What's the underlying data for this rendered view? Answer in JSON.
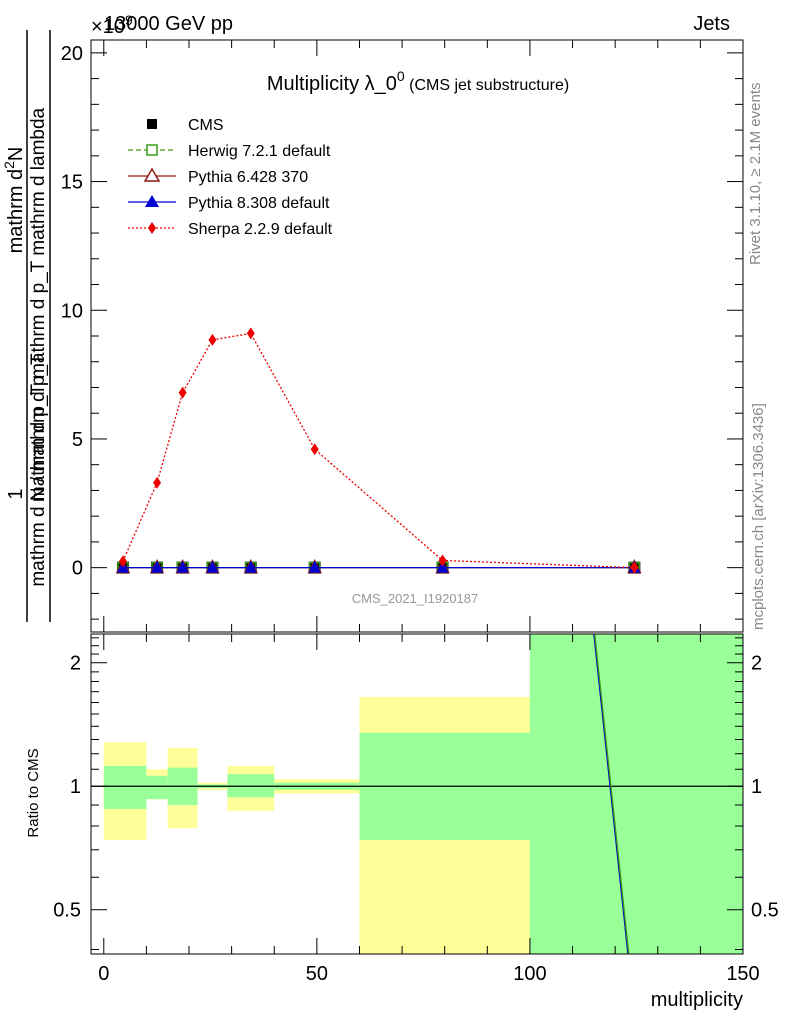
{
  "header": {
    "left": "13000 GeV pp",
    "right": "Jets"
  },
  "side_labels": {
    "rivet": "Rivet 3.1.10, ≥ 2.1M events",
    "mcplots": "mcplots.cern.ch [arXiv:1306.3436]"
  },
  "watermark": "CMS_2021_I1920187",
  "chart_data": [
    {
      "type": "line",
      "title": "Multiplicity λ_0^0",
      "title_main": "Multiplicity λ_0",
      "title_sup": "0",
      "subtitle": "(CMS jet substructure)",
      "ylabel_numerator": "mathrm d²N",
      "ylabel_numerator_text": "mathrm d",
      "ylabel_numerator_sup": "2",
      "ylabel_numerator_end": "N",
      "ylabel_fraction_one": "1",
      "ylabel_denominator_upper": "mathrm d p_T mathrm d p_T mathrm d lambda",
      "ylabel_denominator_lower": "mathrm d N / mathrm d p_T",
      "yexponent": "×10^9",
      "yexponent_base": "×10",
      "yexponent_power": "9",
      "ylim": [
        -2.5,
        20.5
      ],
      "xlim": [
        -3,
        150
      ],
      "yticks": [
        0,
        5,
        10,
        15,
        20
      ],
      "ytick_labels": [
        "0",
        "5",
        "10",
        "15",
        "20"
      ],
      "legend_position": "top-left",
      "x": [
        4.5,
        12.5,
        18.5,
        25.5,
        34.5,
        49.5,
        79.5,
        124.5
      ],
      "series": [
        {
          "name": "CMS",
          "color": "#000000",
          "marker": "square",
          "values": [
            0,
            0,
            0,
            0,
            0,
            0,
            0,
            0
          ]
        },
        {
          "name": "Herwig 7.2.1 default",
          "color": "#3a9a10",
          "marker": "open-square",
          "dash": "dashed",
          "values": [
            0,
            0,
            0,
            0,
            0,
            0,
            0,
            0
          ]
        },
        {
          "name": "Pythia 6.428 370",
          "color": "#8b1a1a",
          "marker": "open-triangle",
          "values": [
            0,
            0,
            0,
            0,
            0,
            0,
            0,
            0
          ]
        },
        {
          "name": "Pythia 8.308 default",
          "color": "#0000d0",
          "marker": "triangle",
          "values": [
            0,
            0,
            0,
            0,
            0,
            0,
            0,
            0
          ]
        },
        {
          "name": "Sherpa 2.2.9 default",
          "color": "#ee0000",
          "marker": "diamond",
          "dash": "dotted",
          "values": [
            0.25,
            3.3,
            6.8,
            8.85,
            9.1,
            4.6,
            0.28,
            0
          ]
        }
      ]
    },
    {
      "type": "area",
      "ylabel": "Ratio to CMS",
      "xlabel": "multiplicity",
      "xlim": [
        -3,
        150
      ],
      "ylim": [
        0.39,
        2.35
      ],
      "ylog": true,
      "xticks": [
        0,
        50,
        100,
        150
      ],
      "xtick_labels": [
        "0",
        "50",
        "100",
        "150"
      ],
      "yticks": [
        0.5,
        1,
        2
      ],
      "ytick_labels": [
        "0.5",
        "1",
        "2"
      ],
      "reference_line": 1,
      "bins": [
        {
          "x0": 0,
          "x1": 10,
          "stat": [
            0.88,
            1.12
          ],
          "total": [
            0.74,
            1.28
          ]
        },
        {
          "x0": 10,
          "x1": 15,
          "stat": [
            0.93,
            1.06
          ],
          "total": [
            0.93,
            1.1
          ]
        },
        {
          "x0": 15,
          "x1": 22,
          "stat": [
            0.9,
            1.11
          ],
          "total": [
            0.79,
            1.24
          ]
        },
        {
          "x0": 22,
          "x1": 29,
          "stat": [
            0.99,
            1.01
          ],
          "total": [
            0.98,
            1.02
          ]
        },
        {
          "x0": 29,
          "x1": 40,
          "stat": [
            0.94,
            1.07
          ],
          "total": [
            0.87,
            1.12
          ]
        },
        {
          "x0": 40,
          "x1": 60,
          "stat": [
            0.98,
            1.02
          ],
          "total": [
            0.96,
            1.04
          ]
        },
        {
          "x0": 60,
          "x1": 100,
          "stat": [
            0.74,
            1.35
          ],
          "total": [
            0.39,
            1.65
          ]
        },
        {
          "x0": 100,
          "x1": 150,
          "stat": [
            0.39,
            2.35
          ],
          "total": [
            0.39,
            2.35
          ]
        }
      ],
      "band_colors": {
        "stat": "#99ff99",
        "total": "#ffff99"
      },
      "ratio_lines": [
        {
          "name": "Pythia 8.308 default",
          "color": "#0000d0",
          "points": [
            [
              115,
              2.35
            ],
            [
              123,
              0.39
            ]
          ]
        },
        {
          "name": "Herwig 7.2.1 default",
          "color": "#3a9a10",
          "points": [
            [
              115.2,
              2.35
            ],
            [
              123.2,
              0.39
            ]
          ]
        }
      ]
    }
  ]
}
